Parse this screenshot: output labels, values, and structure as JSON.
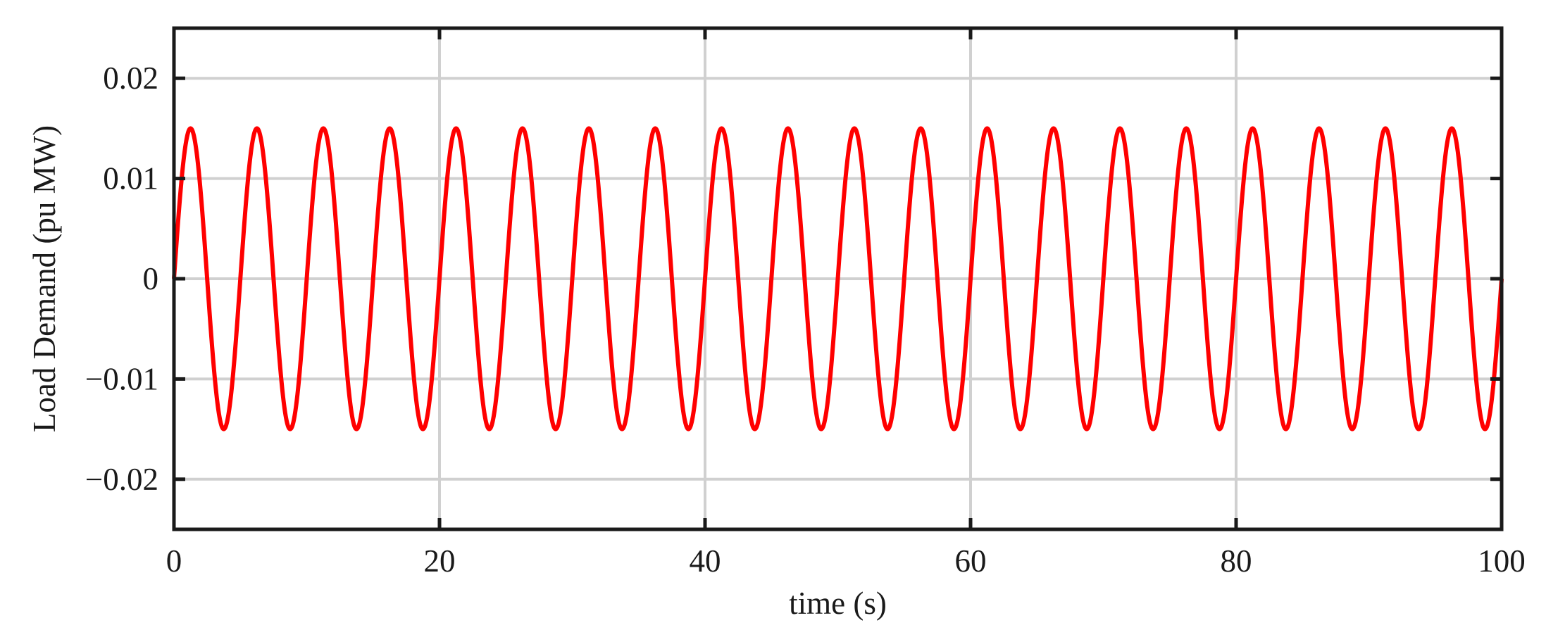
{
  "chart_data": {
    "type": "line",
    "xlabel": "time (s)",
    "ylabel": "Load Demand (pu MW)",
    "xlim": [
      0,
      100
    ],
    "ylim": [
      -0.025,
      0.025
    ],
    "xticks": [
      0,
      20,
      40,
      60,
      80,
      100
    ],
    "xtick_labels": [
      "0",
      "20",
      "40",
      "60",
      "80",
      "100"
    ],
    "yticks": [
      0.02,
      0.01,
      0,
      -0.01,
      -0.02
    ],
    "ytick_labels": [
      "0.02",
      "0.01",
      "0",
      "−0.01",
      "−0.02"
    ],
    "grid": true,
    "series": [
      {
        "color": "#ff0000",
        "function": "0.015*sin(2*pi*x/5)",
        "amplitude": 0.015,
        "period": 5,
        "x_start": 0,
        "x_end": 100
      }
    ]
  }
}
